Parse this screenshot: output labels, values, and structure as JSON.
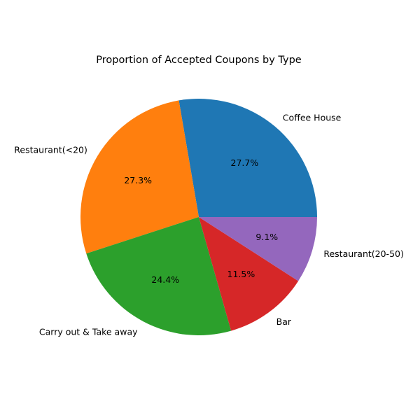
{
  "chart_data": {
    "type": "pie",
    "title": "Proportion of Accepted Coupons by Type",
    "categories": [
      "Coffee House",
      "Restaurant(<20)",
      "Carry out & Take away",
      "Bar",
      "Restaurant(20-50)"
    ],
    "values": [
      27.7,
      27.3,
      24.4,
      11.5,
      9.1
    ],
    "value_labels": [
      "27.7%",
      "27.3%",
      "24.4%",
      "11.5%",
      "9.1%"
    ],
    "colors": [
      "#1f77b4",
      "#ff7f0e",
      "#2ca02c",
      "#d62728",
      "#9467bd"
    ],
    "start_angle_deg": 0,
    "direction": "counterclockwise"
  }
}
